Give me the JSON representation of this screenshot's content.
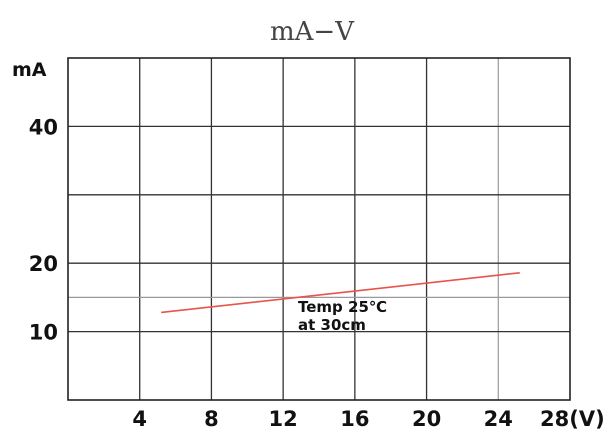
{
  "chart_data": {
    "type": "line",
    "title": "mA−V",
    "ylabel": "mA",
    "x_unit_label": "28(V)",
    "xlim": [
      0,
      28
    ],
    "ylim": [
      0,
      50
    ],
    "x_ticks": [
      4,
      8,
      12,
      16,
      20,
      24,
      28
    ],
    "x_tick_labels": [
      "4",
      "8",
      "12",
      "16",
      "20",
      "24",
      "28(V)"
    ],
    "y_ticks": [
      10,
      15,
      20,
      30,
      40
    ],
    "y_tick_labels": [
      "10",
      "",
      "20",
      "",
      "40"
    ],
    "grid": true,
    "series": [
      {
        "color": "#e8534a",
        "points": [
          {
            "x": 5.2,
            "y": 12.8
          },
          {
            "x": 25.2,
            "y": 18.6
          }
        ]
      }
    ],
    "annotation": {
      "line1": "Temp 25℃",
      "line2": "at 30cm"
    }
  }
}
